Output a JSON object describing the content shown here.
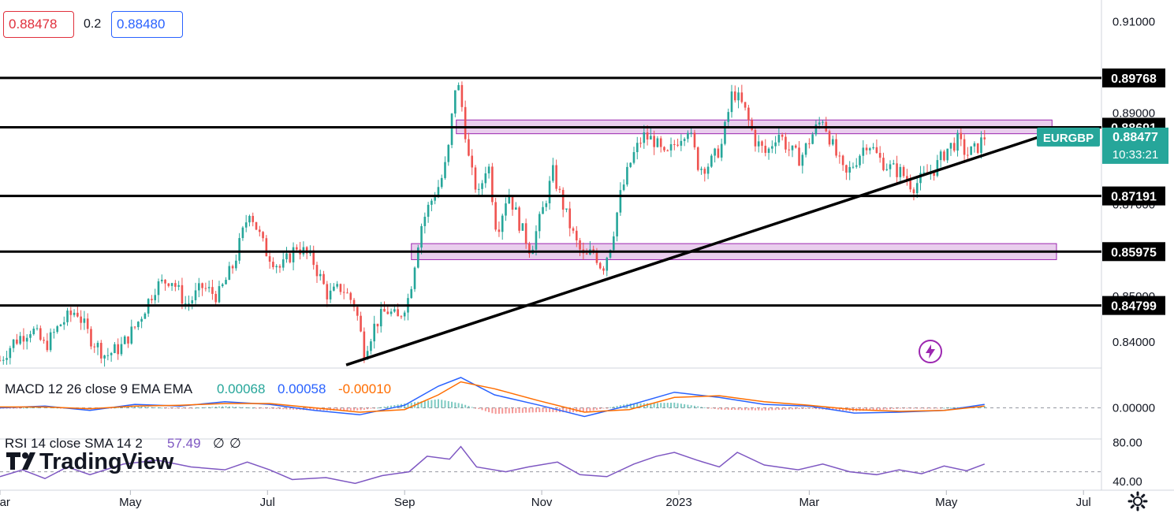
{
  "header": {
    "bid": "0.88478",
    "spread": "0.2",
    "ask": "0.88480"
  },
  "symbol": {
    "name": "EURGBP",
    "last": "0.88477",
    "countdown": "10:33:21"
  },
  "branding": {
    "logo_text": "TradingView"
  },
  "colors": {
    "up": "#26a69a",
    "down": "#ef5350",
    "zone": "#e1bee7",
    "zone_border": "#9c27b0",
    "macd": "#2962ff",
    "signal": "#ff6d00",
    "rsi": "#7e57c2",
    "label_bg": "#000000",
    "symbol_bg": "#26a69a"
  },
  "icons": {
    "settings": "gear-icon",
    "alert": "lightning-icon"
  },
  "chart_data": [
    {
      "type": "candlestick",
      "symbol": "EURGBP",
      "x_labels": [
        "Mar",
        "May",
        "Jul",
        "Sep",
        "Nov",
        "2023",
        "Mar",
        "May",
        "Jul"
      ],
      "y_ticks": [
        "0.91000",
        "0.89000",
        "0.87000",
        "0.85000",
        "0.84000"
      ],
      "ylim": [
        0.8345,
        0.9147
      ],
      "close_path": [
        [
          0,
          0.836
        ],
        [
          6,
          0.84
        ],
        [
          14,
          0.843
        ],
        [
          20,
          0.839
        ],
        [
          27,
          0.844
        ],
        [
          34,
          0.847
        ],
        [
          40,
          0.841
        ],
        [
          47,
          0.837
        ],
        [
          54,
          0.839
        ],
        [
          61,
          0.844
        ],
        [
          69,
          0.852
        ],
        [
          76,
          0.854
        ],
        [
          83,
          0.848
        ],
        [
          90,
          0.852
        ],
        [
          97,
          0.85
        ],
        [
          104,
          0.857
        ],
        [
          111,
          0.869
        ],
        [
          118,
          0.86
        ],
        [
          125,
          0.856
        ],
        [
          132,
          0.861
        ],
        [
          139,
          0.858
        ],
        [
          146,
          0.85
        ],
        [
          152,
          0.852
        ],
        [
          158,
          0.848
        ],
        [
          162,
          0.838
        ],
        [
          167,
          0.844
        ],
        [
          172,
          0.847
        ],
        [
          177,
          0.845
        ],
        [
          182,
          0.85
        ],
        [
          187,
          0.865
        ],
        [
          191,
          0.87
        ],
        [
          196,
          0.875
        ],
        [
          199,
          0.88
        ],
        [
          203,
          0.898
        ],
        [
          206,
          0.89
        ],
        [
          209,
          0.878
        ],
        [
          213,
          0.872
        ],
        [
          217,
          0.88
        ],
        [
          221,
          0.864
        ],
        [
          226,
          0.873
        ],
        [
          231,
          0.866
        ],
        [
          236,
          0.86
        ],
        [
          241,
          0.868
        ],
        [
          246,
          0.877
        ],
        [
          251,
          0.869
        ],
        [
          256,
          0.862
        ],
        [
          260,
          0.858
        ],
        [
          264,
          0.86
        ],
        [
          268,
          0.856
        ],
        [
          272,
          0.862
        ],
        [
          276,
          0.872
        ],
        [
          281,
          0.88
        ],
        [
          286,
          0.885
        ],
        [
          291,
          0.884
        ],
        [
          296,
          0.88
        ],
        [
          301,
          0.884
        ],
        [
          306,
          0.887
        ],
        [
          311,
          0.878
        ],
        [
          316,
          0.879
        ],
        [
          321,
          0.883
        ],
        [
          326,
          0.895
        ],
        [
          331,
          0.891
        ],
        [
          336,
          0.884
        ],
        [
          341,
          0.881
        ],
        [
          346,
          0.886
        ],
        [
          351,
          0.882
        ],
        [
          356,
          0.88
        ],
        [
          361,
          0.885
        ],
        [
          366,
          0.889
        ],
        [
          371,
          0.882
        ],
        [
          376,
          0.876
        ],
        [
          381,
          0.88
        ],
        [
          386,
          0.884
        ],
        [
          391,
          0.88
        ],
        [
          396,
          0.878
        ],
        [
          401,
          0.877
        ],
        [
          406,
          0.874
        ],
        [
          411,
          0.876
        ],
        [
          416,
          0.878
        ],
        [
          421,
          0.882
        ],
        [
          426,
          0.884
        ],
        [
          430,
          0.881
        ],
        [
          434,
          0.882
        ],
        [
          438,
          0.8848
        ]
      ],
      "horizontal_levels": [
        {
          "price": 0.89768,
          "label": "0.89768"
        },
        {
          "price": 0.88691,
          "label": "0.88691"
        },
        {
          "price": 0.87191,
          "label": "0.87191"
        },
        {
          "price": 0.85975,
          "label": "0.85975"
        },
        {
          "price": 0.84799,
          "label": "0.84799"
        }
      ],
      "zones": [
        {
          "from": 0.8855,
          "to": 0.8885,
          "x_start": 203,
          "x_end": 468
        },
        {
          "from": 0.858,
          "to": 0.8615,
          "x_start": 183,
          "x_end": 470
        }
      ],
      "trendline": [
        [
          154,
          0.835
        ],
        [
          466,
          0.8854
        ]
      ],
      "x_tick_days": [
        0,
        58,
        119,
        180,
        241,
        302,
        360,
        421,
        482
      ],
      "x_domain_days": [
        0,
        490
      ]
    },
    {
      "type": "line",
      "title": "MACD 12 26 close 9 EMA EMA",
      "values": [
        "0.00068",
        "0.00058",
        "-0.00010"
      ],
      "y_ticks": [
        "0.00000"
      ],
      "zero_line": 0,
      "series": [
        {
          "values": [
            [
              0,
              0.0
            ],
            [
              20,
              0.0002
            ],
            [
              40,
              -0.0003
            ],
            [
              60,
              0.0004
            ],
            [
              80,
              0.0002
            ],
            [
              100,
              0.0007
            ],
            [
              120,
              0.0004
            ],
            [
              140,
              -0.0003
            ],
            [
              160,
              -0.0008
            ],
            [
              180,
              0.0003
            ],
            [
              195,
              0.0025
            ],
            [
              205,
              0.0035
            ],
            [
              220,
              0.0015
            ],
            [
              240,
              0.0003
            ],
            [
              260,
              -0.001
            ],
            [
              280,
              0.0003
            ],
            [
              300,
              0.0018
            ],
            [
              320,
              0.0012
            ],
            [
              340,
              0.0004
            ],
            [
              360,
              0.0002
            ],
            [
              380,
              -0.0006
            ],
            [
              400,
              -0.0005
            ],
            [
              420,
              -0.0003
            ],
            [
              438,
              0.0004
            ]
          ]
        },
        {
          "values": [
            [
              0,
              0.0001
            ],
            [
              20,
              0.0001
            ],
            [
              40,
              -0.0001
            ],
            [
              60,
              0.0002
            ],
            [
              80,
              0.0003
            ],
            [
              100,
              0.0005
            ],
            [
              120,
              0.0005
            ],
            [
              140,
              0.0
            ],
            [
              160,
              -0.0005
            ],
            [
              180,
              -0.0002
            ],
            [
              195,
              0.0015
            ],
            [
              205,
              0.003
            ],
            [
              220,
              0.0022
            ],
            [
              240,
              0.0008
            ],
            [
              260,
              -0.0005
            ],
            [
              280,
              -0.0002
            ],
            [
              300,
              0.0012
            ],
            [
              320,
              0.0014
            ],
            [
              340,
              0.0007
            ],
            [
              360,
              0.0003
            ],
            [
              380,
              -0.0002
            ],
            [
              400,
              -0.0004
            ],
            [
              420,
              -0.0003
            ],
            [
              438,
              0.0002
            ]
          ]
        }
      ],
      "ylim": [
        -0.0035,
        0.0045
      ]
    },
    {
      "type": "line",
      "title": "RSI 14 close SMA 14 2",
      "values": [
        "57.49",
        "∅",
        "∅"
      ],
      "y_ticks": [
        "80.00",
        "40.00"
      ],
      "ylim": [
        31,
        83
      ],
      "series": [
        {
          "values": [
            [
              0,
              45
            ],
            [
              10,
              52
            ],
            [
              20,
              43
            ],
            [
              30,
              55
            ],
            [
              40,
              47
            ],
            [
              55,
              58
            ],
            [
              70,
              62
            ],
            [
              85,
              55
            ],
            [
              100,
              52
            ],
            [
              110,
              60
            ],
            [
              120,
              52
            ],
            [
              130,
              42
            ],
            [
              145,
              44
            ],
            [
              158,
              38
            ],
            [
              170,
              46
            ],
            [
              182,
              50
            ],
            [
              190,
              66
            ],
            [
              200,
              63
            ],
            [
              205,
              76
            ],
            [
              212,
              55
            ],
            [
              225,
              50
            ],
            [
              235,
              55
            ],
            [
              248,
              60
            ],
            [
              258,
              47
            ],
            [
              270,
              45
            ],
            [
              282,
              58
            ],
            [
              292,
              66
            ],
            [
              300,
              70
            ],
            [
              310,
              62
            ],
            [
              320,
              55
            ],
            [
              328,
              70
            ],
            [
              340,
              57
            ],
            [
              355,
              52
            ],
            [
              366,
              58
            ],
            [
              378,
              50
            ],
            [
              390,
              47
            ],
            [
              400,
              52
            ],
            [
              410,
              48
            ],
            [
              420,
              56
            ],
            [
              430,
              51
            ],
            [
              438,
              58
            ]
          ]
        }
      ]
    }
  ]
}
